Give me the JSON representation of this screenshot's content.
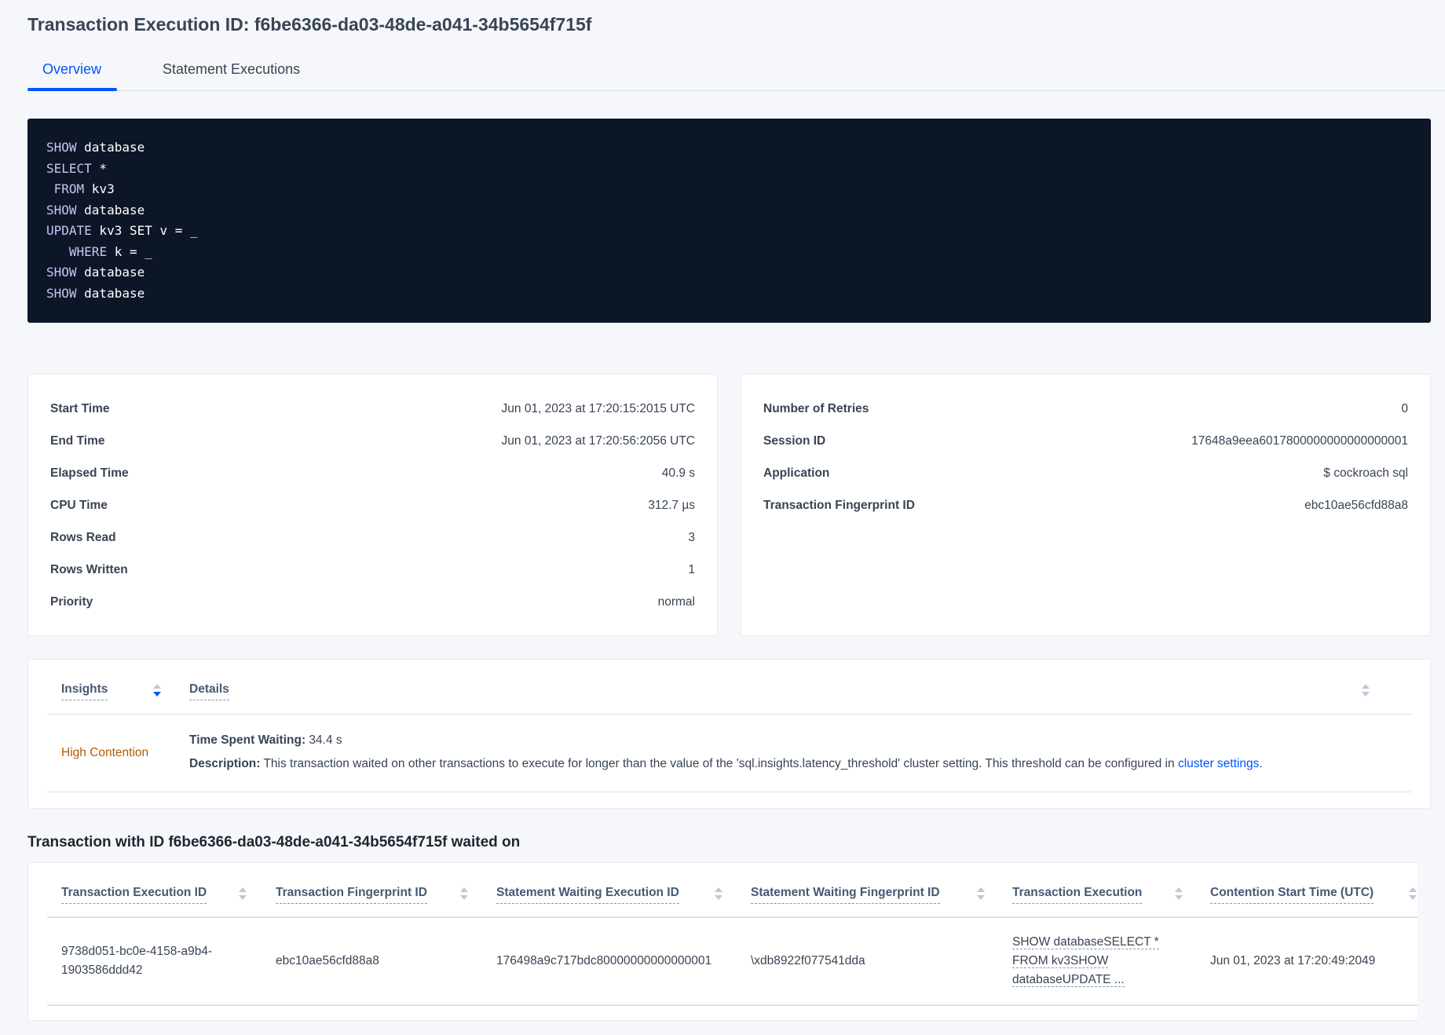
{
  "title": "Transaction Execution ID: f6be6366-da03-48de-a041-34b5654f715f",
  "tabs": [
    {
      "label": "Overview",
      "active": true
    },
    {
      "label": "Statement Executions",
      "active": false
    }
  ],
  "sql_lines": [
    {
      "kw": "SHOW",
      "rest": " database",
      "indent": ""
    },
    {
      "kw": "SELECT",
      "rest": " *",
      "indent": ""
    },
    {
      "kw": "FROM",
      "rest": " kv3",
      "indent": " "
    },
    {
      "kw": "SHOW",
      "rest": " database",
      "indent": ""
    },
    {
      "kw": "UPDATE",
      "rest": " kv3 SET v = _",
      "indent": ""
    },
    {
      "kw": "WHERE",
      "rest": " k = _",
      "indent": "   "
    },
    {
      "kw": "SHOW",
      "rest": " database",
      "indent": ""
    },
    {
      "kw": "SHOW",
      "rest": " database",
      "indent": ""
    }
  ],
  "left_details": [
    {
      "label": "Start Time",
      "value": "Jun 01, 2023 at 17:20:15:2015 UTC"
    },
    {
      "label": "End Time",
      "value": "Jun 01, 2023 at 17:20:56:2056 UTC"
    },
    {
      "label": "Elapsed Time",
      "value": "40.9 s"
    },
    {
      "label": "CPU Time",
      "value": "312.7 µs"
    },
    {
      "label": "Rows Read",
      "value": "3"
    },
    {
      "label": "Rows Written",
      "value": "1"
    },
    {
      "label": "Priority",
      "value": "normal"
    }
  ],
  "right_details": [
    {
      "label": "Number of Retries",
      "value": "0"
    },
    {
      "label": "Session ID",
      "value": "17648a9eea6017800000000000000001"
    },
    {
      "label": "Application",
      "value": "$ cockroach sql"
    },
    {
      "label": "Transaction Fingerprint ID",
      "value": "ebc10ae56cfd88a8",
      "link": true
    }
  ],
  "insights": {
    "headers": [
      "Insights",
      "Details"
    ],
    "row": {
      "insight": "High Contention",
      "insight_color": "#b25c00",
      "time_label": "Time Spent Waiting:",
      "time_value": " 34.4 s",
      "desc_label": "Description:",
      "desc_text": " This transaction waited on other transactions to execute for longer than the value of the 'sql.insights.latency_threshold' cluster setting. This threshold can be configured in ",
      "desc_link": "cluster settings",
      "desc_end": "."
    }
  },
  "waited_heading": "Transaction with ID f6be6366-da03-48de-a041-34b5654f715f waited on",
  "waited_table": {
    "headers": [
      "Transaction Execution ID",
      "Transaction Fingerprint ID",
      "Statement Waiting Execution ID",
      "Statement Waiting Fingerprint ID",
      "Transaction Execution",
      "Contention Start Time (UTC)"
    ],
    "row": {
      "txn_exec_id_1": "9738d051-bc0e-4158-a9b4-",
      "txn_exec_id_2": "1903586ddd42",
      "txn_fp_id": "ebc10ae56cfd88a8",
      "stmt_exec_id": "176498a9c717bdc80000000000000001",
      "stmt_fp_id": "\\xdb8922f077541dda",
      "txn_exec_1": "SHOW databaseSELECT *",
      "txn_exec_2": "FROM kv3SHOW",
      "txn_exec_3": "databaseUPDATE ...",
      "contention_start": "Jun 01, 2023 at 17:20:49:2049"
    }
  },
  "colors": {
    "accent": "#0055ff",
    "code_bg": "#0d1627",
    "page_bg": "#f5f7fa"
  }
}
